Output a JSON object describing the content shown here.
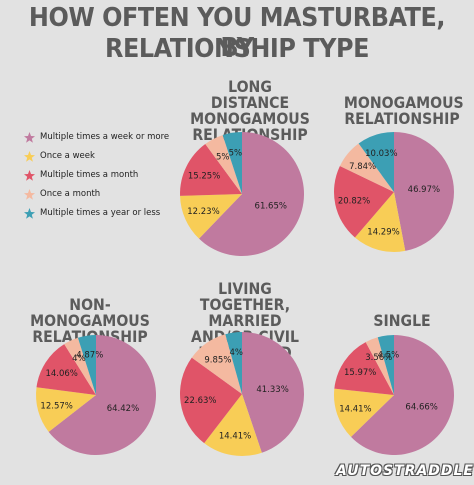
{
  "title": {
    "line1": "HOW OFTEN YOU MASTURBATE, BY",
    "line2": "RELATIONSHIP TYPE"
  },
  "colors": {
    "multiple_week": "#c07a9f",
    "once_week": "#f8cd56",
    "multiple_month": "#e05468",
    "once_month": "#f4b9a0",
    "year_or_less": "#3c9fb4"
  },
  "legend": [
    {
      "label": "Multiple times a week or more",
      "color": "#c07a9f"
    },
    {
      "label": "Once a week",
      "color": "#f8cd56"
    },
    {
      "label": "Multiple times a month",
      "color": "#e05468"
    },
    {
      "label": "Once a month",
      "color": "#f4b9a0"
    },
    {
      "label": "Multiple times a year or less",
      "color": "#3c9fb4"
    }
  ],
  "logo": "AUTOSTRADDLE",
  "chart_data": [
    {
      "type": "pie",
      "title_lines": [
        "LONG DISTANCE",
        "MONOGAMOUS",
        "RELATIONSHIP"
      ],
      "categories": [
        "Multiple times a week or more",
        "Once a week",
        "Multiple times a month",
        "Once a month",
        "Multiple times a year or less"
      ],
      "values": [
        61.65,
        12.23,
        15.25,
        5,
        5
      ],
      "labels": [
        "61.65%",
        "12.23%",
        "15.25%",
        "5%",
        "5%"
      ]
    },
    {
      "type": "pie",
      "title_lines": [
        "MONOGAMOUS",
        "RELATIONSHIP"
      ],
      "categories": [
        "Multiple times a week or more",
        "Once a week",
        "Multiple times a month",
        "Once a month",
        "Multiple times a year or less"
      ],
      "values": [
        46.97,
        14.29,
        20.82,
        7.84,
        10.03
      ],
      "labels": [
        "46.97%",
        "14.29%",
        "20.82%",
        "7.84%",
        "10.03%"
      ]
    },
    {
      "type": "pie",
      "title_lines": [
        "NON-MONOGAMOUS",
        "RELATIONSHIP"
      ],
      "categories": [
        "Multiple times a week or more",
        "Once a week",
        "Multiple times a month",
        "Once a month",
        "Multiple times a year or less"
      ],
      "values": [
        64.42,
        12.57,
        14.06,
        4,
        4.87
      ],
      "labels": [
        "64.42%",
        "12.57%",
        "14.06%",
        "4%",
        "4.87%"
      ]
    },
    {
      "type": "pie",
      "title_lines": [
        "LIVING TOGETHER,",
        "MARRIED AND/OR CIVIL",
        "PARTNERED"
      ],
      "categories": [
        "Multiple times a week or more",
        "Once a week",
        "Multiple times a month",
        "Once a month",
        "Multiple times a year or less"
      ],
      "values": [
        41.33,
        14.41,
        22.63,
        9.85,
        4
      ],
      "labels": [
        "41.33%",
        "14.41%",
        "22.63%",
        "9.85%",
        "4%"
      ]
    },
    {
      "type": "pie",
      "title_lines": [
        "SINGLE"
      ],
      "categories": [
        "Multiple times a week or more",
        "Once a week",
        "Multiple times a month",
        "Once a month",
        "Multiple times a year or less"
      ],
      "values": [
        64.66,
        14.41,
        15.97,
        3.56,
        4.5
      ],
      "labels": [
        "64.66%",
        "14.41%",
        "15.97%",
        "3.56%",
        "4.5%"
      ]
    }
  ]
}
